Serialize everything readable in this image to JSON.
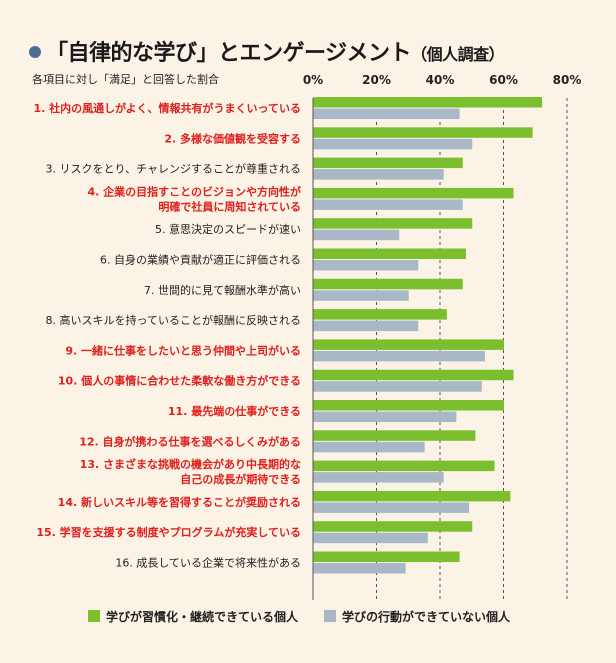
{
  "title": "「自律的な学び」とエンゲージメント",
  "title_note": "（個人調査）",
  "subtitle": "各項目に対し「満足」と回答した割合",
  "colors": {
    "background": "#fbf3e6",
    "series1": "#7cbf2e",
    "series2": "#a9b8c7",
    "highlight": "#e0201e",
    "normal": "#222222",
    "title_dot": "#4f6d8f"
  },
  "chart_data": {
    "type": "bar",
    "orientation": "horizontal",
    "xlim": [
      0,
      80
    ],
    "ticks": [
      "0%",
      "20%",
      "40%",
      "60%",
      "80%"
    ],
    "tick_values": [
      0,
      20,
      40,
      60,
      80
    ],
    "gridlines": "dashed vertical",
    "categories": [
      {
        "label": "1. 社内の風通しがよく、情報共有がうまくいっている",
        "highlight": true
      },
      {
        "label": "2. 多様な価値観を受容する",
        "highlight": true
      },
      {
        "label": "3. リスクをとり、チャレンジすることが尊重される",
        "highlight": false
      },
      {
        "label": "4. 企業の目指すことのビジョンや方向性が\n明確で社員に周知されている",
        "highlight": true
      },
      {
        "label": "5. 意思決定のスピードが速い",
        "highlight": false
      },
      {
        "label": "6. 自身の業績や貢献が適正に評価される",
        "highlight": false
      },
      {
        "label": "7. 世間的に見て報酬水準が高い",
        "highlight": false
      },
      {
        "label": "8. 高いスキルを持っていることが報酬に反映される",
        "highlight": false
      },
      {
        "label": "9. 一緒に仕事をしたいと思う仲間や上司がいる",
        "highlight": true
      },
      {
        "label": "10. 個人の事情に合わせた柔軟な働き方ができる",
        "highlight": true
      },
      {
        "label": "11. 最先端の仕事ができる",
        "highlight": true
      },
      {
        "label": "12. 自身が携わる仕事を選べるしくみがある",
        "highlight": true
      },
      {
        "label": "13. さまざまな挑戦の機会があり中長期的な\n自己の成長が期待できる",
        "highlight": true
      },
      {
        "label": "14. 新しいスキル等を習得することが奨励される",
        "highlight": true
      },
      {
        "label": "15. 学習を支援する制度やプログラムが充実している",
        "highlight": true
      },
      {
        "label": "16. 成長している企業で将来性がある",
        "highlight": false
      }
    ],
    "series": [
      {
        "name": "学びが習慣化・継続できている個人",
        "values": [
          72,
          69,
          47,
          63,
          50,
          48,
          47,
          42,
          60,
          63,
          60,
          51,
          57,
          62,
          50,
          46
        ]
      },
      {
        "name": "学びの行動ができていない個人",
        "values": [
          46,
          50,
          41,
          47,
          27,
          33,
          30,
          33,
          54,
          53,
          45,
          35,
          41,
          49,
          36,
          29
        ]
      }
    ],
    "legend_position": "bottom"
  }
}
